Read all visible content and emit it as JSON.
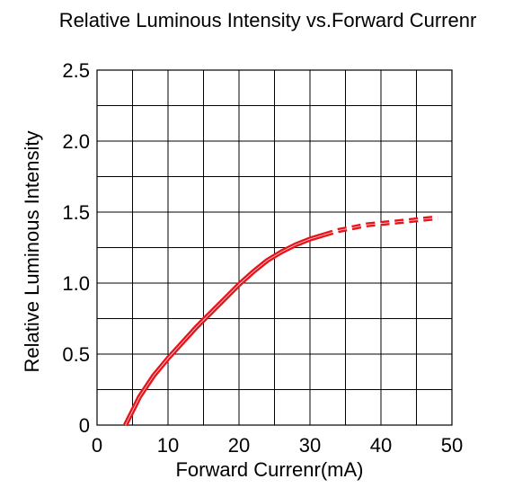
{
  "chart_data": {
    "type": "line",
    "title": "Relative Luminous Intensity vs.Forward Currenr",
    "xlabel": "Forward Currenr(mA)",
    "ylabel": "Relative Luminous Intensity",
    "xlim": [
      0,
      50
    ],
    "ylim": [
      0,
      2.5
    ],
    "x_ticks": [
      0,
      10,
      20,
      30,
      40,
      50
    ],
    "x_tick_labels": [
      "0",
      "10",
      "20",
      "30",
      "40",
      "50"
    ],
    "y_ticks": [
      0,
      0.5,
      1.0,
      1.5,
      2.0,
      2.5
    ],
    "y_tick_labels": [
      "0",
      "0.5",
      "1.0",
      "1.5",
      "2.0",
      "2.5"
    ],
    "x_minor_grid_step": 5,
    "y_minor_grid_step": 0.25,
    "grid": true,
    "series": [
      {
        "style": "solid",
        "color": "#e8141c",
        "x": [
          4,
          6,
          8,
          10,
          12,
          14,
          16,
          18,
          20,
          22,
          24,
          26,
          28,
          30,
          32
        ],
        "y": [
          0.0,
          0.2,
          0.35,
          0.47,
          0.58,
          0.69,
          0.79,
          0.89,
          0.99,
          1.08,
          1.16,
          1.22,
          1.27,
          1.31,
          1.34
        ]
      },
      {
        "style": "dashed",
        "color": "#e8141c",
        "x": [
          32,
          34,
          36,
          38,
          40,
          42,
          44,
          46,
          48
        ],
        "y": [
          1.34,
          1.37,
          1.39,
          1.41,
          1.42,
          1.43,
          1.44,
          1.45,
          1.46
        ]
      }
    ]
  }
}
